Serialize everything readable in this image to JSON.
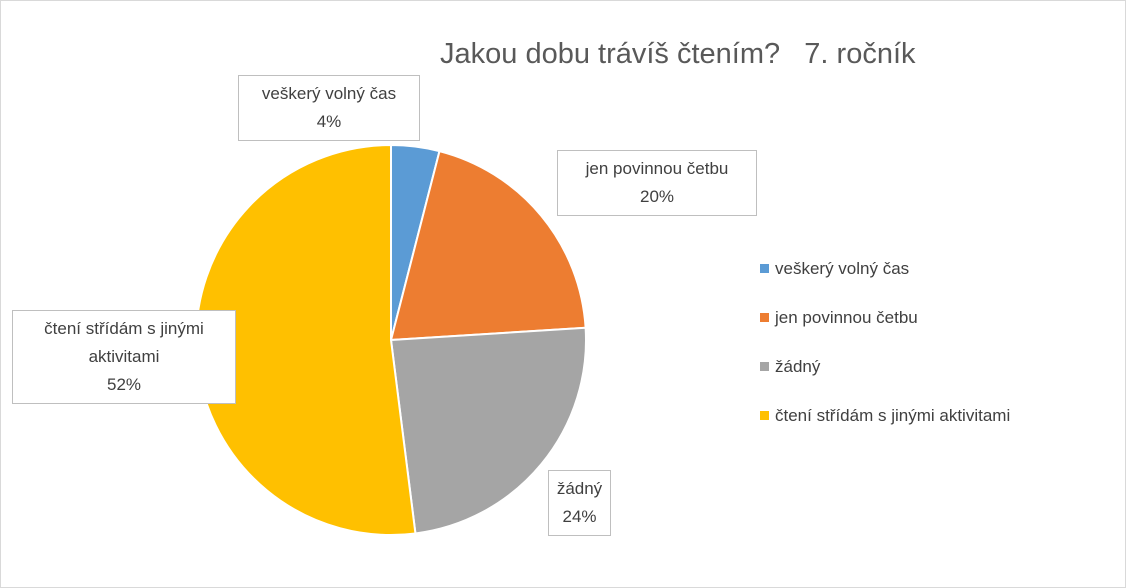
{
  "chart_data": {
    "type": "pie",
    "title": "Jakou dobu trávíš čtením?   7. ročník",
    "categories": [
      "veškerý volný čas",
      "jen povinnou četbu",
      "žádný",
      "čtení střídám s jinými aktivitami"
    ],
    "values": [
      4,
      20,
      24,
      52
    ],
    "value_labels": [
      "4%",
      "20%",
      "24%",
      "52%"
    ],
    "colors": [
      "#5b9bd5",
      "#ed7d31",
      "#a5a5a5",
      "#ffc000"
    ],
    "legend": "right"
  }
}
